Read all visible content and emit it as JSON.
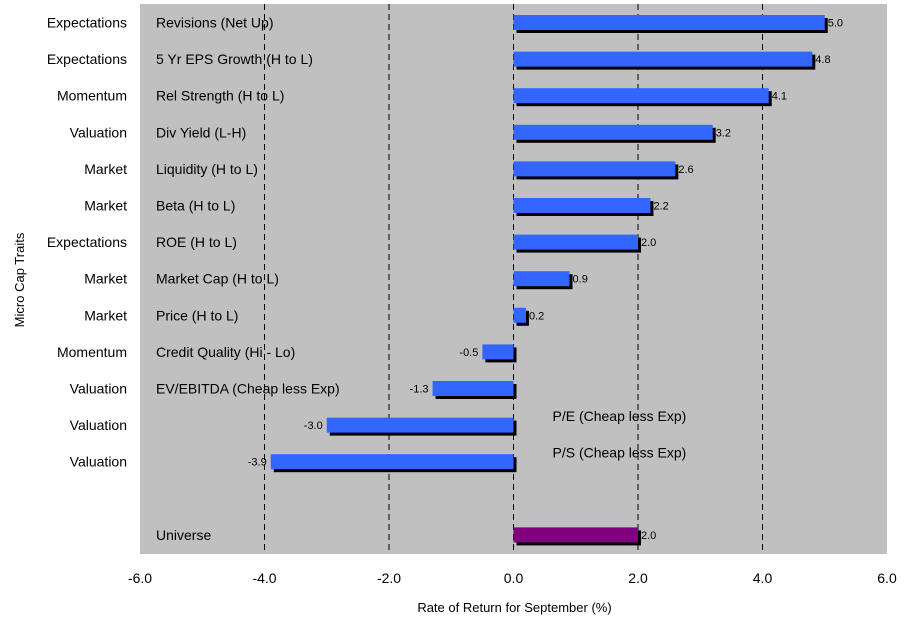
{
  "chart_data": {
    "type": "bar",
    "orientation": "horizontal",
    "xlabel": "Rate of Return for September (%)",
    "ylabel": "Micro Cap Traits",
    "xlim": [
      -6.0,
      6.0
    ],
    "xticks": [
      "-6.0",
      "-4.0",
      "-2.0",
      "0.0",
      "2.0",
      "4.0",
      "6.0"
    ],
    "grid": "vertical dashed",
    "categories": [
      {
        "group": "Expectations",
        "name": "Revisions (Net Up)",
        "value": 5.0,
        "label": "5.0"
      },
      {
        "group": "Expectations",
        "name": "5 Yr EPS Growth (H to L)",
        "value": 4.8,
        "label": "4.8"
      },
      {
        "group": "Momentum",
        "name": "Rel Strength (H to L)",
        "value": 4.1,
        "label": "4.1"
      },
      {
        "group": "Valuation",
        "name": "Div Yield (L-H)",
        "value": 3.2,
        "label": "3.2"
      },
      {
        "group": "Market",
        "name": "Liquidity (H to L)",
        "value": 2.6,
        "label": "2.6"
      },
      {
        "group": "Market",
        "name": "Beta  (H to L)",
        "value": 2.2,
        "label": "2.2"
      },
      {
        "group": "Expectations",
        "name": "ROE (H to L)",
        "value": 2.0,
        "label": "2.0"
      },
      {
        "group": "Market",
        "name": "Market Cap (H to L)",
        "value": 0.9,
        "label": "0.9"
      },
      {
        "group": "Market",
        "name": "Price (H to L)",
        "value": 0.2,
        "label": "0.2"
      },
      {
        "group": "Momentum",
        "name": "Credit Quality (Hi - Lo)",
        "value": -0.5,
        "label": "-0.5"
      },
      {
        "group": "Valuation",
        "name": "EV/EBITDA (Cheap less Exp)",
        "value": -1.3,
        "label": "-1.3"
      },
      {
        "group": "Valuation",
        "name": "P/E (Cheap less Exp)",
        "value": -3.0,
        "label": "-3.0"
      },
      {
        "group": "Valuation",
        "name": "P/S (Cheap less Exp)",
        "value": -3.9,
        "label": "-3.9"
      },
      {
        "group": "",
        "name": "",
        "value": null,
        "label": ""
      },
      {
        "group": "",
        "name": "Universe",
        "value": 2.0,
        "label": "2.0",
        "highlight": true
      }
    ],
    "colors": {
      "plot_bg": "#c0c0c0",
      "bar": "#3366ff",
      "universe_bar": "#800080",
      "bar_shadow": "#000000",
      "grid": "#000000"
    }
  }
}
